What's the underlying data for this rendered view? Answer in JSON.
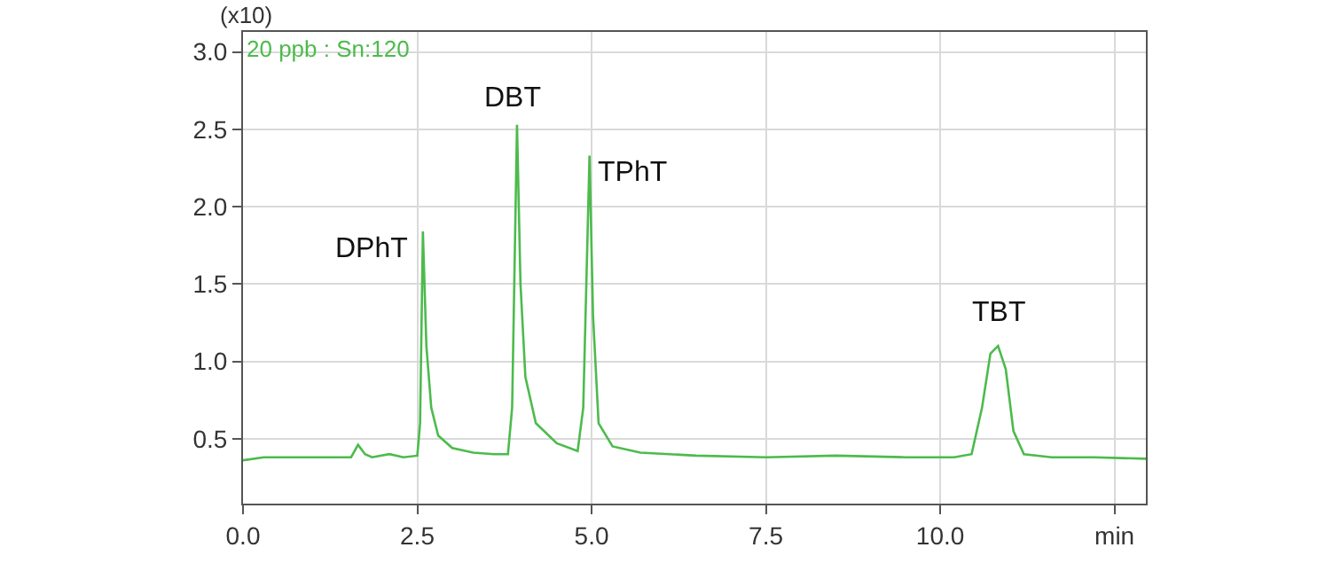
{
  "chart_data": {
    "type": "line",
    "x": [
      0.0,
      0.3,
      0.6,
      1.0,
      1.4,
      1.55,
      1.65,
      1.75,
      1.85,
      2.1,
      2.3,
      2.5,
      2.54,
      2.58,
      2.63,
      2.7,
      2.8,
      3.0,
      3.3,
      3.6,
      3.8,
      3.86,
      3.93,
      3.98,
      4.05,
      4.2,
      4.5,
      4.8,
      4.88,
      4.97,
      5.02,
      5.1,
      5.3,
      5.7,
      6.5,
      7.5,
      8.5,
      9.5,
      10.2,
      10.45,
      10.6,
      10.72,
      10.83,
      10.94,
      11.05,
      11.2,
      11.6,
      12.2,
      12.95
    ],
    "series": [
      {
        "color": "#4cbb4c",
        "values": [
          0.36,
          0.38,
          0.38,
          0.38,
          0.38,
          0.38,
          0.46,
          0.4,
          0.38,
          0.4,
          0.38,
          0.39,
          0.6,
          1.84,
          1.1,
          0.7,
          0.52,
          0.44,
          0.41,
          0.4,
          0.4,
          0.7,
          2.53,
          1.5,
          0.9,
          0.6,
          0.47,
          0.42,
          0.7,
          2.33,
          1.3,
          0.6,
          0.45,
          0.41,
          0.39,
          0.38,
          0.39,
          0.38,
          0.38,
          0.4,
          0.7,
          1.05,
          1.1,
          0.95,
          0.55,
          0.4,
          0.38,
          0.38,
          0.37
        ]
      }
    ],
    "xlim": [
      0,
      12.95
    ],
    "ylim": [
      0.08,
      3.13
    ],
    "xticks": [
      {
        "value": 0,
        "label": "0.0"
      },
      2.5,
      {
        "value": 5,
        "label": "5.0"
      },
      7.5,
      {
        "value": 10,
        "label": "10.0"
      },
      {
        "value": 12.5,
        "label": "min"
      }
    ],
    "yticks": [
      {
        "value": 0.5,
        "label": "0.5"
      },
      {
        "value": 1.0,
        "label": "1.0"
      },
      {
        "value": 1.5,
        "label": "1.5"
      },
      {
        "value": 2.0,
        "label": "2.0"
      },
      {
        "value": 2.5,
        "label": "2.5"
      },
      {
        "value": 3.0,
        "label": "3.0"
      }
    ],
    "grid": true,
    "marker": "none",
    "line_style": "solid",
    "annotations": [
      {
        "text": "DPhT",
        "x": 2.58,
        "y": 1.84
      },
      {
        "text": "DBT",
        "x": 3.93,
        "y": 2.53
      },
      {
        "text": "TPhT",
        "x": 4.97,
        "y": 2.33
      },
      {
        "text": "TBT",
        "x": 10.83,
        "y": 1.1
      },
      "(x10)",
      "20 ppb : Sn:120"
    ]
  }
}
